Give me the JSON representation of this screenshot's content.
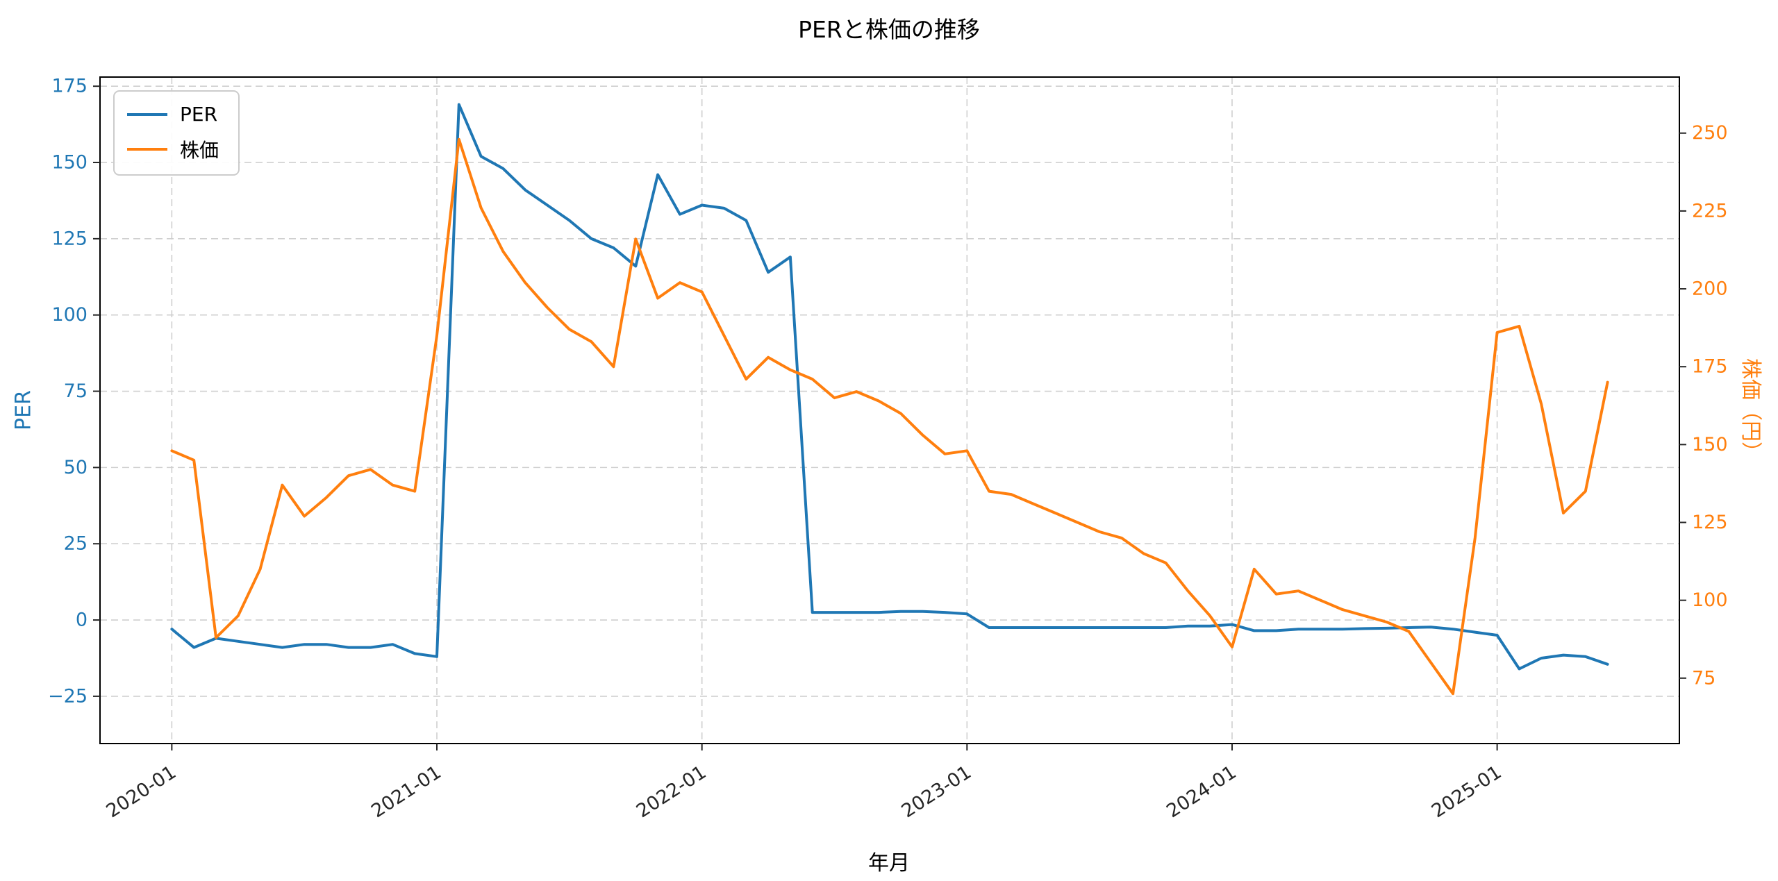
{
  "chart_data": {
    "type": "line",
    "title": "PERと株価の推移",
    "xlabel": "年月",
    "grid": true,
    "legend": {
      "position": "upper left",
      "entries": [
        "PER",
        "株価"
      ]
    },
    "x": [
      "2020-01",
      "2020-02",
      "2020-03",
      "2020-04",
      "2020-05",
      "2020-06",
      "2020-07",
      "2020-08",
      "2020-09",
      "2020-10",
      "2020-11",
      "2020-12",
      "2021-01",
      "2021-02",
      "2021-03",
      "2021-04",
      "2021-05",
      "2021-06",
      "2021-07",
      "2021-08",
      "2021-09",
      "2021-10",
      "2021-11",
      "2021-12",
      "2022-01",
      "2022-02",
      "2022-03",
      "2022-04",
      "2022-05",
      "2022-06",
      "2022-07",
      "2022-08",
      "2022-09",
      "2022-10",
      "2022-11",
      "2022-12",
      "2023-01",
      "2023-02",
      "2023-03",
      "2023-04",
      "2023-05",
      "2023-06",
      "2023-07",
      "2023-08",
      "2023-09",
      "2023-10",
      "2023-11",
      "2023-12",
      "2024-01",
      "2024-02",
      "2024-03",
      "2024-04",
      "2024-05",
      "2024-06",
      "2024-07",
      "2024-08",
      "2024-09",
      "2024-10",
      "2024-11",
      "2024-12",
      "2025-01",
      "2025-02",
      "2025-03",
      "2025-04",
      "2025-05",
      "2025-06"
    ],
    "x_tick_labels": [
      "2020-01",
      "2021-01",
      "2022-01",
      "2023-01",
      "2024-01",
      "2025-01"
    ],
    "series": [
      {
        "name": "PER",
        "axis": "left",
        "color": "#1f77b4",
        "values": [
          -3,
          -9,
          -6,
          -7,
          -8,
          -9,
          -8,
          -8,
          -9,
          -9,
          -8,
          -11,
          -12,
          169,
          152,
          148,
          141,
          136,
          131,
          125,
          122,
          116,
          146,
          133,
          136,
          135,
          131,
          114,
          119,
          2.5,
          2.5,
          2.5,
          2.5,
          2.8,
          2.8,
          2.5,
          2,
          -2.5,
          -2.5,
          -2.5,
          -2.5,
          -2.5,
          -2.5,
          -2.5,
          -2.5,
          -2.5,
          -2,
          -2,
          -1.5,
          -3.5,
          -3.5,
          -3,
          -3,
          -3,
          -2.8,
          -2.7,
          -2.5,
          -2.3,
          -3,
          -4,
          -5,
          -16,
          -12.5,
          -11.5,
          -12,
          -14.5
        ]
      },
      {
        "name": "株価",
        "axis": "right",
        "color": "#ff7f0e",
        "values": [
          148,
          145,
          88,
          95,
          110,
          137,
          127,
          133,
          140,
          142,
          137,
          135,
          185,
          248,
          226,
          212,
          202,
          194,
          187,
          183,
          175,
          216,
          197,
          202,
          199,
          185,
          171,
          178,
          174,
          171,
          165,
          167,
          164,
          160,
          153,
          147,
          148,
          135,
          134,
          131,
          128,
          125,
          122,
          120,
          115,
          112,
          103,
          95,
          85,
          110,
          102,
          103,
          100,
          97,
          95,
          93,
          90,
          80,
          70,
          120,
          186,
          188,
          163,
          128,
          135,
          170
        ]
      }
    ],
    "left_axis": {
      "label": "PER",
      "color": "#1f77b4",
      "ticks": [
        -25,
        0,
        25,
        50,
        75,
        100,
        125,
        150,
        175
      ],
      "min": -40.5,
      "max": 178
    },
    "right_axis": {
      "label": "株価（円）",
      "color": "#ff7f0e",
      "ticks": [
        75,
        100,
        125,
        150,
        175,
        200,
        225,
        250
      ],
      "min": 54,
      "max": 268
    }
  }
}
